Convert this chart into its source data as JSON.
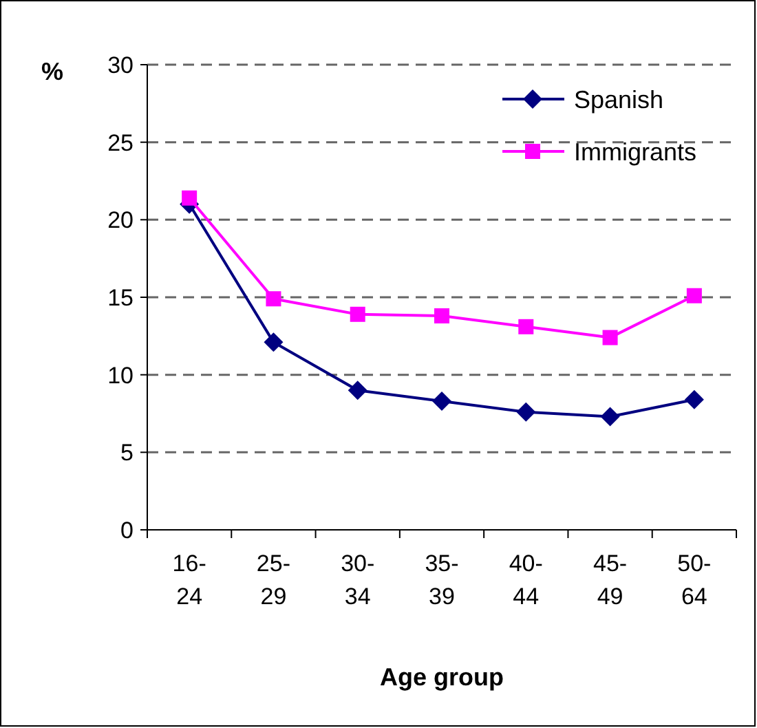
{
  "chart_data": {
    "type": "line",
    "ylabel": "%",
    "xlabel": "Age group",
    "categories": [
      "16-\n24",
      "25-\n29",
      "30-\n34",
      "35-\n39",
      "40-\n44",
      "45-\n49",
      "50-\n64"
    ],
    "series": [
      {
        "name": "Spanish",
        "color": "#000080",
        "marker": "diamond",
        "values": [
          21.0,
          12.1,
          9.0,
          8.3,
          7.6,
          7.3,
          8.4
        ]
      },
      {
        "name": "Immigrants",
        "color": "#ff00ff",
        "marker": "square",
        "values": [
          21.4,
          14.9,
          13.9,
          13.8,
          13.1,
          12.4,
          15.1
        ]
      }
    ],
    "ylim": [
      0,
      30
    ],
    "yticks": [
      0,
      5,
      10,
      15,
      20,
      25,
      30
    ],
    "grid": "y",
    "legend": "top right"
  }
}
